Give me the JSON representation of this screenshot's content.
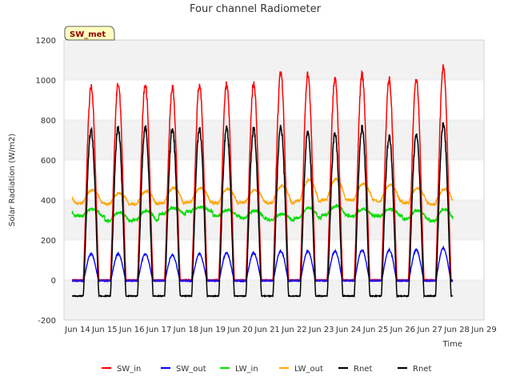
{
  "chart_data": {
    "type": "line",
    "title": "Four channel Radiometer",
    "xlabel": "Time",
    "ylabel": "Solar Radiation (W/m2)",
    "ylim": [
      -200,
      1200
    ],
    "yticks": [
      -200,
      0,
      200,
      400,
      600,
      800,
      1000,
      1200
    ],
    "xlim": [
      13.5,
      29
    ],
    "xticks": [
      {
        "v": 14,
        "label": "Jun 14"
      },
      {
        "v": 15,
        "label": "Jun 15"
      },
      {
        "v": 16,
        "label": "Jun 16"
      },
      {
        "v": 17,
        "label": "Jun 17"
      },
      {
        "v": 18,
        "label": "Jun 18"
      },
      {
        "v": 19,
        "label": "Jun 19"
      },
      {
        "v": 20,
        "label": "Jun 20"
      },
      {
        "v": 21,
        "label": "Jun 21"
      },
      {
        "v": 22,
        "label": "Jun 22"
      },
      {
        "v": 23,
        "label": "Jun 23"
      },
      {
        "v": 24,
        "label": "Jun 24"
      },
      {
        "v": 25,
        "label": "Jun 25"
      },
      {
        "v": 26,
        "label": "Jun 26"
      },
      {
        "v": 27,
        "label": "Jun 27"
      },
      {
        "v": 28,
        "label": "Jun 28"
      },
      {
        "v": 29,
        "label": "Jun 29"
      }
    ],
    "days": [
      14,
      15,
      16,
      17,
      18,
      19,
      20,
      21,
      22,
      23,
      24,
      25,
      26,
      27
    ],
    "start": 13.8,
    "end": 27.85,
    "last_day_end": 27.85,
    "daily_peak": {
      "SW_in": [
        965,
        985,
        980,
        960,
        980,
        980,
        985,
        1035,
        1025,
        1005,
        1030,
        1000,
        1005,
        1060
      ],
      "SW_out": [
        130,
        130,
        130,
        125,
        130,
        135,
        135,
        145,
        145,
        145,
        150,
        150,
        150,
        160
      ],
      "Rnet": [
        750,
        760,
        765,
        755,
        760,
        760,
        755,
        765,
        745,
        730,
        760,
        720,
        730,
        780
      ]
    },
    "night_levels": {
      "SW_in": 0,
      "SW_out": -5,
      "Rnet": -80
    },
    "lw_in_daily": [
      [
        320,
        355
      ],
      [
        295,
        340
      ],
      [
        300,
        345
      ],
      [
        330,
        360
      ],
      [
        345,
        365
      ],
      [
        320,
        350
      ],
      [
        310,
        345
      ],
      [
        300,
        330
      ],
      [
        310,
        360
      ],
      [
        325,
        370
      ],
      [
        320,
        355
      ],
      [
        320,
        355
      ],
      [
        305,
        350
      ],
      [
        295,
        355
      ]
    ],
    "lw_out_daily": [
      [
        385,
        450
      ],
      [
        380,
        435
      ],
      [
        380,
        445
      ],
      [
        385,
        460
      ],
      [
        390,
        460
      ],
      [
        385,
        455
      ],
      [
        390,
        450
      ],
      [
        385,
        470
      ],
      [
        395,
        500
      ],
      [
        400,
        505
      ],
      [
        400,
        480
      ],
      [
        395,
        475
      ],
      [
        385,
        460
      ],
      [
        380,
        455
      ]
    ],
    "series": [
      {
        "name": "SW_in",
        "color": "#ff0000"
      },
      {
        "name": "SW_out",
        "color": "#0000ff"
      },
      {
        "name": "LW_in",
        "color": "#00dd00"
      },
      {
        "name": "LW_out",
        "color": "#ffa500"
      },
      {
        "name": "Rnet",
        "color": "#000000"
      },
      {
        "name": "Rnet",
        "color": "#000000"
      }
    ],
    "legend_position": "bottom",
    "grid": true,
    "annotation": "SW_met"
  }
}
